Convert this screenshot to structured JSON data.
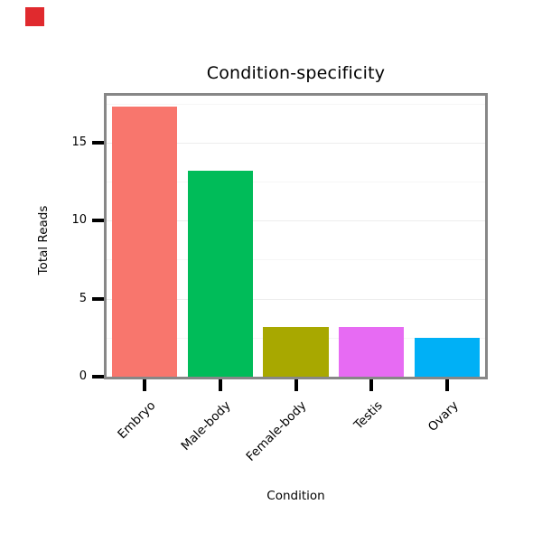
{
  "decoration": {
    "corner_marker_color": "#e02a2e"
  },
  "chart_data": {
    "type": "bar",
    "title": "Condition-specificity",
    "xlabel": "Condition",
    "ylabel": "Total Reads",
    "categories": [
      "Embryo",
      "Male-body",
      "Female-body",
      "Testis",
      "Ovary"
    ],
    "values": [
      17.3,
      13.2,
      3.2,
      3.2,
      2.5
    ],
    "colors": [
      "#F8766D",
      "#00BC59",
      "#A8A800",
      "#E76BF3",
      "#00B0F6"
    ],
    "ylim": [
      0,
      18
    ],
    "yticks": [
      0,
      5,
      10,
      15
    ],
    "yticks_minor": [
      2.5,
      7.5,
      12.5,
      17.5
    ],
    "grid": "faint horizontal gridlines on",
    "grid_major_color": "#ededed",
    "grid_minor_color": "#f6f6f6",
    "legend": "none",
    "panel_border_color": "#878787",
    "bar_orientation": "vertical",
    "x_tick_label_rotation_deg": -45
  }
}
